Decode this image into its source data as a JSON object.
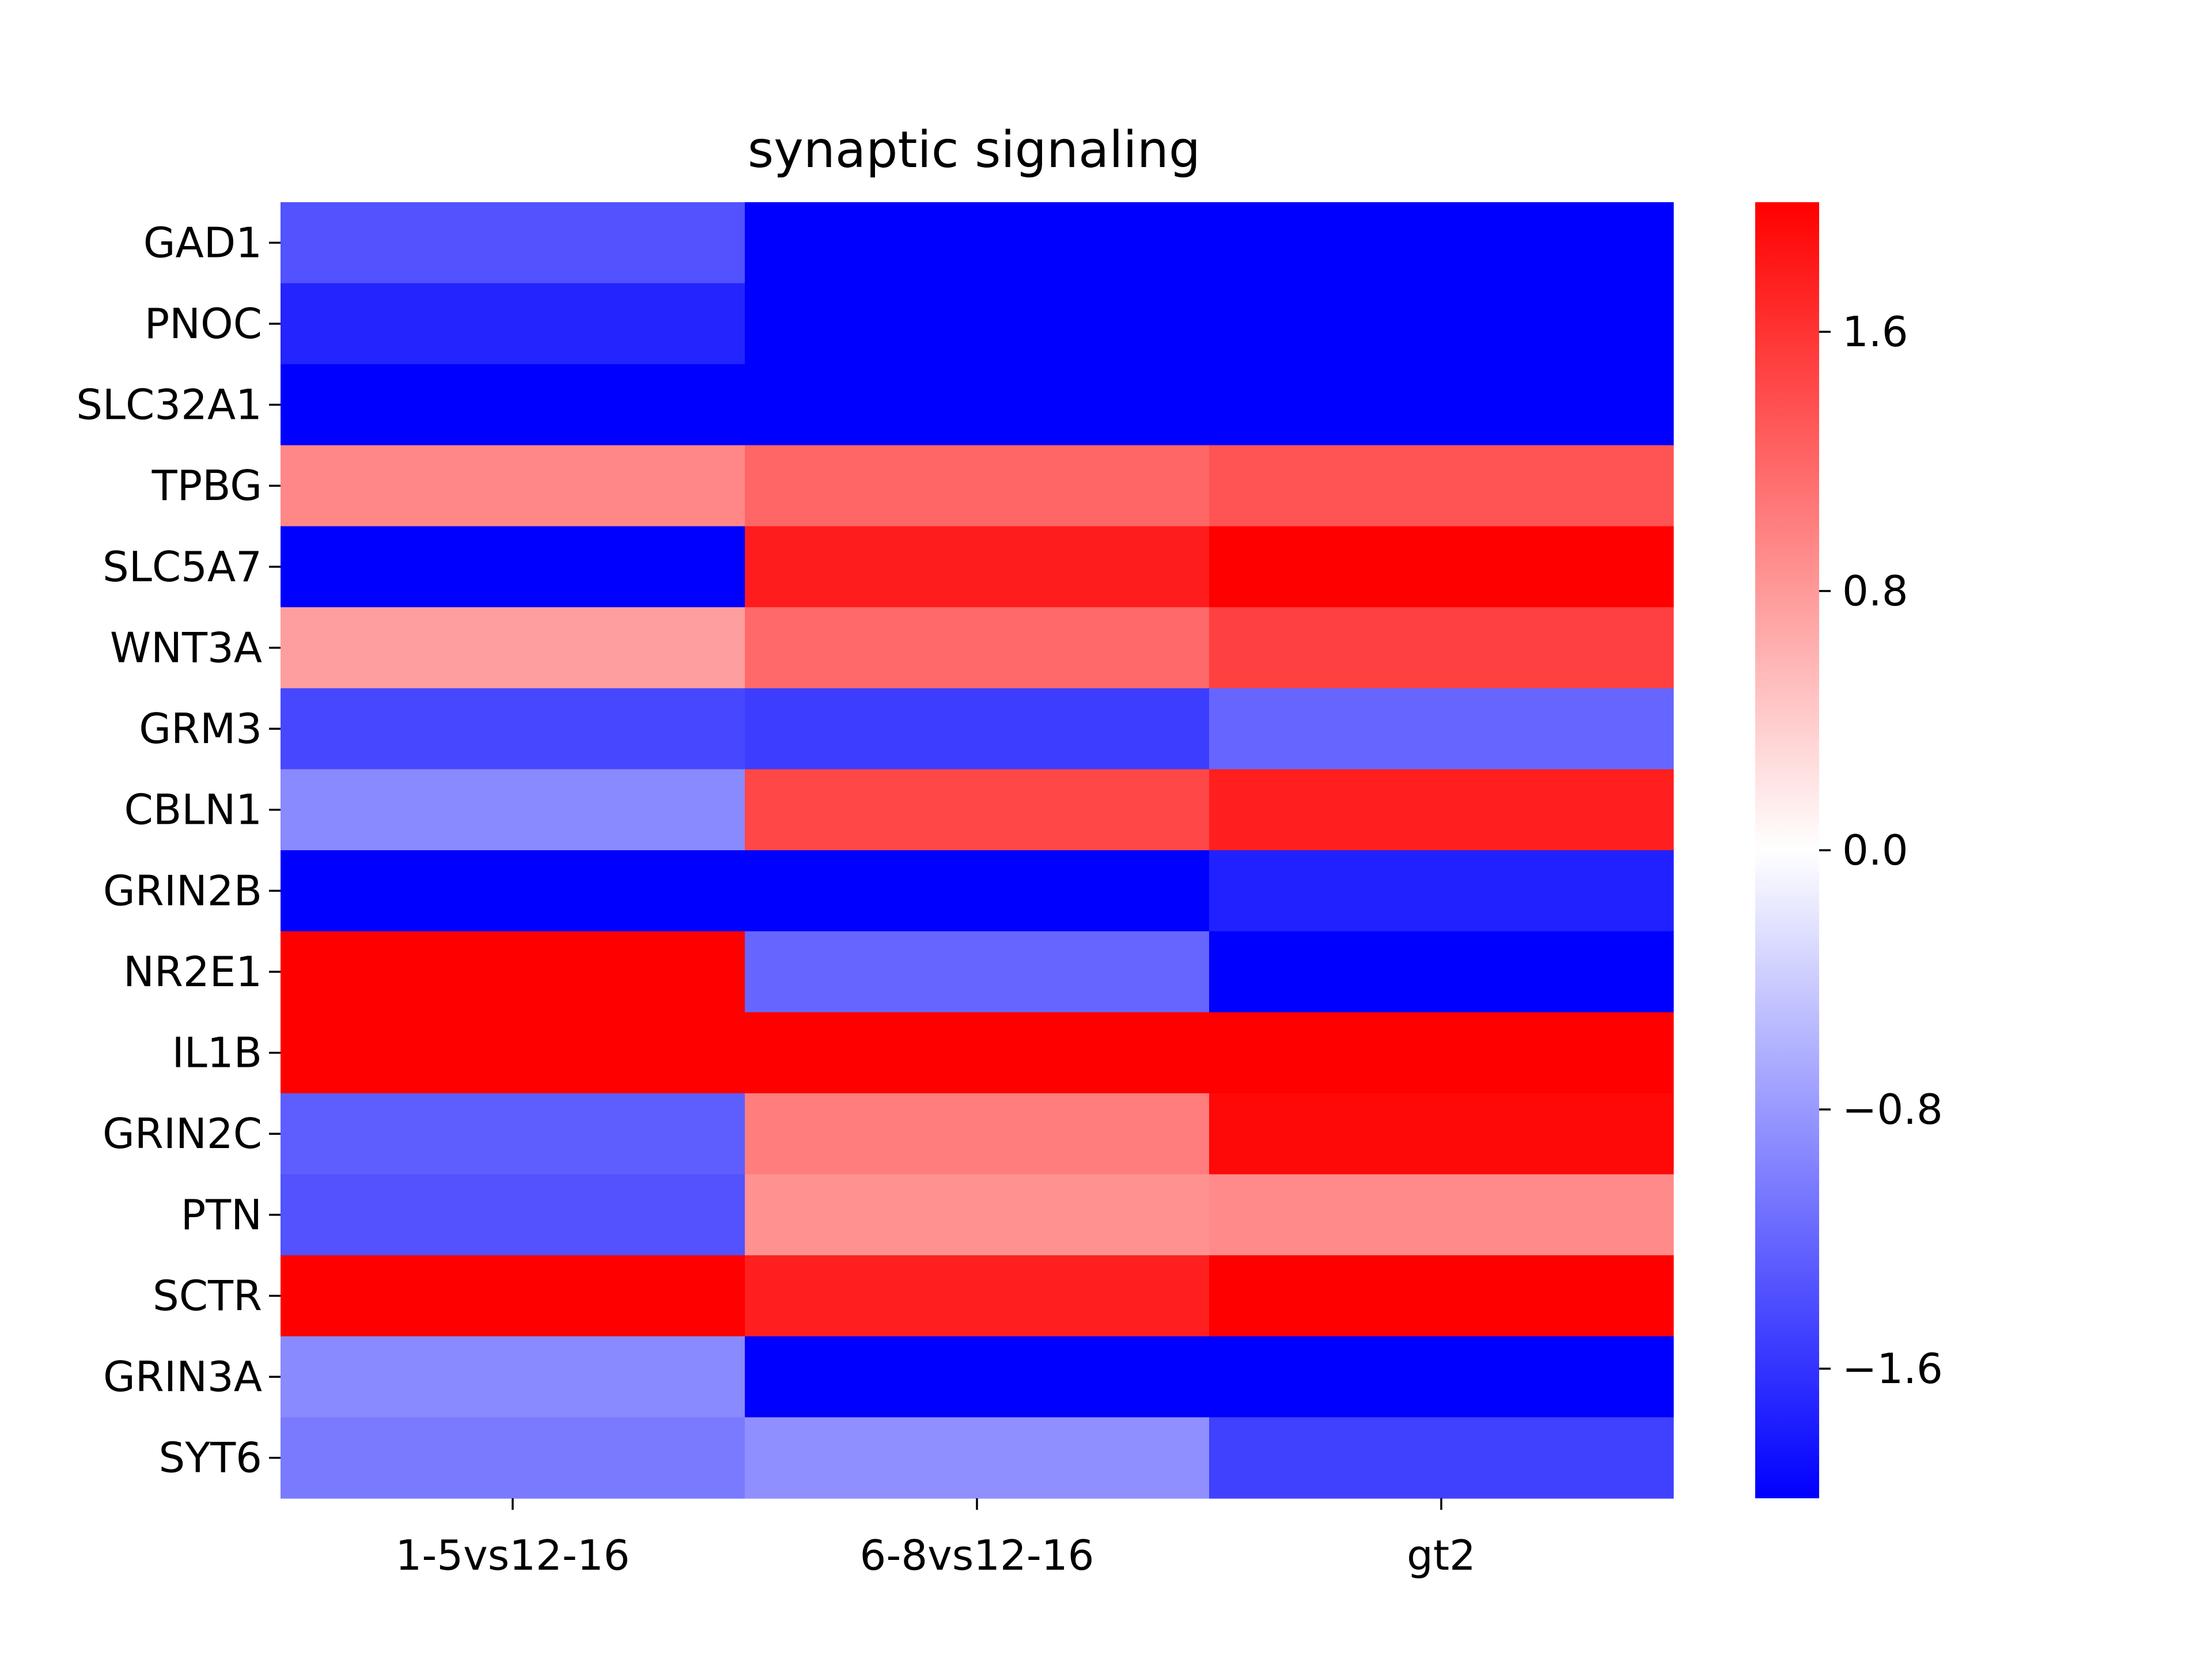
{
  "chart_data": {
    "type": "heatmap",
    "title": "synaptic signaling",
    "xlabel": "",
    "ylabel": "",
    "columns": [
      "1-5vs12-16",
      "6-8vs12-16",
      "gt2"
    ],
    "rows": [
      "GAD1",
      "PNOC",
      "SLC32A1",
      "TPBG",
      "SLC5A7",
      "WNT3A",
      "GRM3",
      "CBLN1",
      "GRIN2B",
      "NR2E1",
      "IL1B",
      "GRIN2C",
      "PTN",
      "SCTR",
      "GRIN3A",
      "SYT6"
    ],
    "values": [
      [
        -1.36,
        -2.0,
        -2.0
      ],
      [
        -1.72,
        -2.0,
        -2.0
      ],
      [
        -2.0,
        -2.0,
        -2.0
      ],
      [
        0.94,
        1.2,
        1.34
      ],
      [
        -2.0,
        1.78,
        2.0
      ],
      [
        0.76,
        1.18,
        1.5
      ],
      [
        -1.44,
        -1.52,
        -1.2
      ],
      [
        -0.92,
        1.44,
        1.76
      ],
      [
        -2.0,
        -2.0,
        -1.74
      ],
      [
        2.0,
        -1.2,
        -2.0
      ],
      [
        2.0,
        2.0,
        2.0
      ],
      [
        -1.26,
        1.02,
        1.94
      ],
      [
        -1.36,
        0.86,
        0.92
      ],
      [
        2.0,
        1.76,
        2.0
      ],
      [
        -0.92,
        -2.0,
        -2.0
      ],
      [
        -1.04,
        -0.88,
        -1.5
      ]
    ],
    "colormap": {
      "name": "bwr",
      "low": "#0000ff",
      "mid": "#ffffff",
      "high": "#ff0000"
    },
    "vmin": -2.0,
    "vmax": 2.0,
    "colorbar_ticks": [
      "1.6",
      "0.8",
      "0.0",
      "−0.8",
      "−1.6"
    ],
    "colorbar_tick_values": [
      1.6,
      0.8,
      0.0,
      -0.8,
      -1.6
    ],
    "grid": false
  }
}
